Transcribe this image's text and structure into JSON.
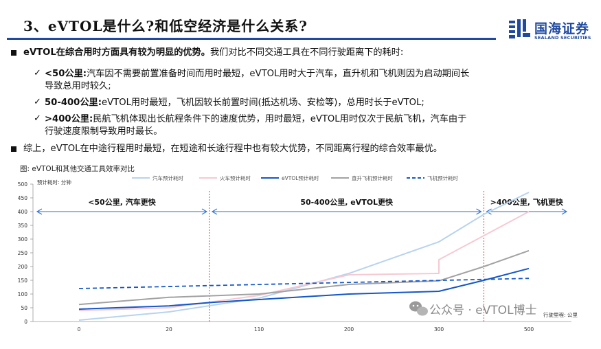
{
  "header": {
    "title": "3、eVTOL是什么?和低空经济是什么关系?",
    "logo_cn": "国海证券",
    "logo_en": "SEALAND SECURITIES"
  },
  "body": {
    "bullet1_bold": "eVTOL在综合用时方面具有较为明显的优势。",
    "bullet1_rest": "我们对比不同交通工具在不同行驶距离下的耗时:",
    "sub1_bold": "<50公里:",
    "sub1_text_line1": "汽车因不需要前置准备时间而用时最短，eVTOL用时大于汽车，直升机和飞机则因为启动期间长",
    "sub1_text_line2": "导致总用时较久;",
    "sub2_bold": "50-400公里:",
    "sub2_text": "eVTOL用时最短，飞机因较长前置时间(抵达机场、安检等)，总用时长于eVTOL;",
    "sub3_bold": ">400公里:",
    "sub3_text_line1": "民航飞机体现出长航程条件下的速度优势，用时最短，eVTOL用时仅次于民航飞机，汽车由于",
    "sub3_text_line2": "行驶速度限制导致用时最长。",
    "bullet2": "综上，eVTOL在中途行程用时最短，在短途和长途行程中也有较大优势，不同距离行程的综合效率最优。"
  },
  "figure": {
    "caption": "图: eVTOL和其他交通工具效率对比",
    "watermark": "公众号 · eVTOL博士"
  },
  "chart_data": {
    "type": "line",
    "title": "",
    "ylabel": "预计耗时: 分钟",
    "xlabel": "行驶里程: 公里",
    "categories": [
      "0",
      "20",
      "110",
      "200",
      "300",
      "500"
    ],
    "ylim": [
      0,
      500
    ],
    "yticks": [
      0,
      50,
      100,
      150,
      200,
      250,
      300,
      350,
      400,
      450,
      500
    ],
    "series": [
      {
        "name": "汽车预计耗时",
        "color": "#b7d3ee",
        "style": "solid",
        "points": [
          [
            0,
            5
          ],
          [
            1,
            35
          ],
          [
            2,
            85
          ],
          [
            3,
            175
          ],
          [
            4,
            290
          ],
          [
            4.5,
            390
          ],
          [
            5,
            470
          ]
        ]
      },
      {
        "name": "火车预计耗时",
        "color": "#f6c9d2",
        "style": "solid",
        "points": [
          [
            0,
            40
          ],
          [
            1,
            50
          ],
          [
            2,
            95
          ],
          [
            3,
            170
          ],
          [
            4,
            175
          ],
          [
            4,
            225
          ],
          [
            5,
            400
          ]
        ]
      },
      {
        "name": "eVTOL预计耗时",
        "color": "#1357c9",
        "style": "solid",
        "points": [
          [
            0,
            45
          ],
          [
            1,
            57
          ],
          [
            1.5,
            70
          ],
          [
            2,
            80
          ],
          [
            3,
            100
          ],
          [
            4,
            110
          ],
          [
            4.5,
            150
          ],
          [
            5,
            193
          ]
        ]
      },
      {
        "name": "直升飞机预计耗时",
        "color": "#a2a2a2",
        "style": "solid",
        "points": [
          [
            0,
            62
          ],
          [
            1,
            88
          ],
          [
            2,
            100
          ],
          [
            3,
            135
          ],
          [
            4,
            148
          ],
          [
            4.5,
            200
          ],
          [
            5,
            258
          ]
        ]
      },
      {
        "name": "飞机预计耗时",
        "color": "#1357c9",
        "style": "dashed",
        "points": [
          [
            0,
            120
          ],
          [
            5,
            157
          ]
        ]
      }
    ],
    "regions": [
      {
        "label": "<50公里, 汽车更快",
        "from": -0.55,
        "to": 1.45
      },
      {
        "label": "50-400公里, eVTOL更快",
        "from": 1.45,
        "to": 4.5
      },
      {
        "label": ">400公里, 飞机更快",
        "from": 4.5,
        "to": 5.45
      }
    ],
    "region_arrow_y": 400,
    "legend_position": "top",
    "grid": false
  }
}
